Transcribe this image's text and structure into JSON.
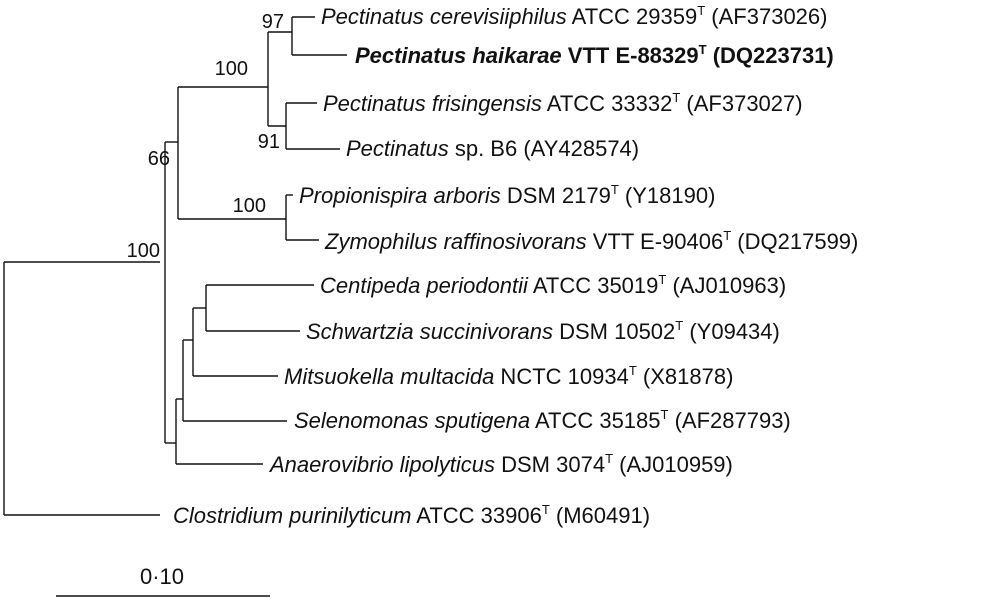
{
  "taxa": [
    {
      "id": "t1",
      "genus": "Pectinatus cerevisiiphilus",
      "strain": "ATCC 29359",
      "type_strain": true,
      "accession": "(AF373026)",
      "bold": false
    },
    {
      "id": "t2",
      "genus": "Pectinatus haikarae",
      "strain": "VTT E-88329",
      "type_strain": true,
      "accession": "(DQ223731)",
      "bold": true
    },
    {
      "id": "t3",
      "genus": "Pectinatus frisingensis",
      "strain": "ATCC 33332",
      "type_strain": true,
      "accession": "(AF373027)",
      "bold": false
    },
    {
      "id": "t4",
      "genus": "Pectinatus",
      "epithet": "sp. B6",
      "strain": "",
      "type_strain": false,
      "accession": "(AY428574)",
      "bold": false
    },
    {
      "id": "t5",
      "genus": "Propionispira arboris",
      "strain": "DSM 2179",
      "type_strain": true,
      "accession": "(Y18190)",
      "bold": false
    },
    {
      "id": "t6",
      "genus": "Zymophilus raffinosivorans",
      "strain": "VTT E-90406",
      "type_strain": true,
      "accession": "(DQ217599)",
      "bold": false
    },
    {
      "id": "t7",
      "genus": "Centipeda periodontii",
      "strain": "ATCC 35019",
      "type_strain": true,
      "accession": "(AJ010963)",
      "bold": false
    },
    {
      "id": "t8",
      "genus": "Schwartzia succinivorans",
      "strain": "DSM 10502",
      "type_strain": true,
      "accession": "(Y09434)",
      "bold": false
    },
    {
      "id": "t9",
      "genus": "Mitsuokella multacida",
      "strain": "NCTC 10934",
      "type_strain": true,
      "accession": "(X81878)",
      "bold": false
    },
    {
      "id": "t10",
      "genus": "Selenomonas sputigena",
      "strain": "ATCC 35185",
      "type_strain": true,
      "accession": "(AF287793)",
      "bold": false
    },
    {
      "id": "t11",
      "genus": "Anaerovibrio lipolyticus",
      "strain": "DSM 3074",
      "type_strain": true,
      "accession": "(AJ010959)",
      "bold": false
    },
    {
      "id": "t12",
      "genus": "Clostridium purinilyticum",
      "strain": "ATCC 33906",
      "type_strain": true,
      "accession": "(M60491)",
      "bold": false
    }
  ],
  "type_mark": "T",
  "bootstrap": [
    {
      "id": "b97",
      "value": "97"
    },
    {
      "id": "b100a",
      "value": "100"
    },
    {
      "id": "b91",
      "value": "91"
    },
    {
      "id": "b66",
      "value": "66"
    },
    {
      "id": "b100b",
      "value": "100"
    },
    {
      "id": "b100c",
      "value": "100"
    }
  ],
  "scale_bar": {
    "label": "0·10",
    "length": 0.1
  }
}
